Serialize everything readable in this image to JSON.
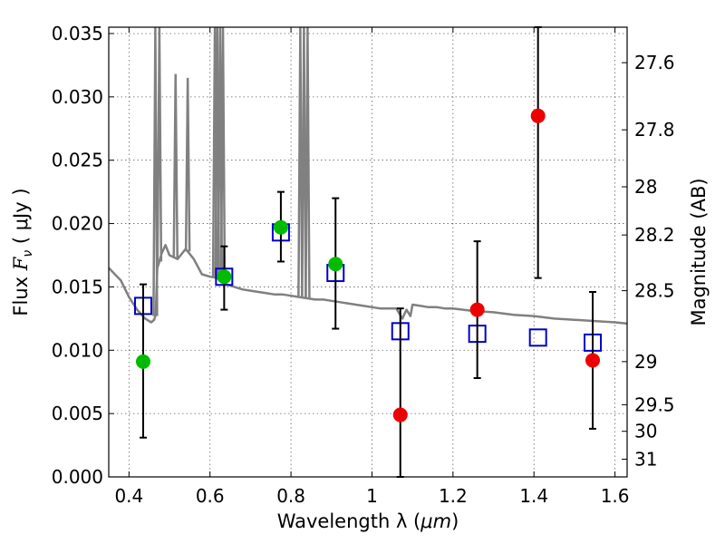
{
  "chart_data": {
    "type": "scatter",
    "title": "",
    "xlabel_prefix": "Wavelength  λ (",
    "xlabel_unit": "μm",
    "xlabel_suffix": ")",
    "ylabel_prefix": "Flux  ",
    "ylabel_symbol": "F",
    "ylabel_sub": "ν",
    "ylabel_suffix": "  ( μJy )",
    "y2label": "Magnitude (AB)",
    "xlim": [
      0.35,
      1.63
    ],
    "ylim": [
      0.0,
      0.0355
    ],
    "x_ticks": [
      {
        "value": 0.4,
        "label": "0.4"
      },
      {
        "value": 0.6,
        "label": "0.6"
      },
      {
        "value": 0.8,
        "label": "0.8"
      },
      {
        "value": 1.0,
        "label": "1"
      },
      {
        "value": 1.2,
        "label": "1.2"
      },
      {
        "value": 1.4,
        "label": "1.4"
      },
      {
        "value": 1.6,
        "label": "1.6"
      }
    ],
    "y_ticks": [
      {
        "value": 0.0,
        "label": "0.000"
      },
      {
        "value": 0.005,
        "label": "0.005"
      },
      {
        "value": 0.01,
        "label": "0.010"
      },
      {
        "value": 0.015,
        "label": "0.015"
      },
      {
        "value": 0.02,
        "label": "0.020"
      },
      {
        "value": 0.025,
        "label": "0.025"
      },
      {
        "value": 0.03,
        "label": "0.030"
      },
      {
        "value": 0.035,
        "label": "0.035"
      }
    ],
    "y2_ticks": [
      {
        "flux": 0.0327,
        "label": "27.6"
      },
      {
        "flux": 0.0274,
        "label": "27.8"
      },
      {
        "flux": 0.0229,
        "label": "28"
      },
      {
        "flux": 0.0191,
        "label": "28.2"
      },
      {
        "flux": 0.0147,
        "label": "28.5"
      },
      {
        "flux": 0.0091,
        "label": "29"
      },
      {
        "flux": 0.0057,
        "label": "29.5"
      },
      {
        "flux": 0.0036,
        "label": "30"
      },
      {
        "flux": 0.0014,
        "label": "31"
      }
    ],
    "grid": true,
    "colors": {
      "model_line": "#808080",
      "model_points": "#0000cc",
      "detections": "#00bb00",
      "nondetections": "#ee0000",
      "errorbars": "#000000"
    },
    "model_spectrum": {
      "x": [
        0.35,
        0.38,
        0.4,
        0.42,
        0.44,
        0.455,
        0.462,
        0.466,
        0.47,
        0.475,
        0.48,
        0.49,
        0.5,
        0.52,
        0.54,
        0.56,
        0.58,
        0.6,
        0.62,
        0.64,
        0.66,
        0.68,
        0.7,
        0.72,
        0.74,
        0.76,
        0.78,
        0.8,
        0.82,
        0.84,
        0.86,
        0.88,
        0.9,
        0.92,
        0.94,
        0.96,
        0.98,
        1.0,
        1.02,
        1.04,
        1.06,
        1.075,
        1.085,
        1.095,
        1.1,
        1.12,
        1.14,
        1.16,
        1.18,
        1.2,
        1.25,
        1.3,
        1.35,
        1.4,
        1.45,
        1.5,
        1.55,
        1.6,
        1.63
      ],
      "y": [
        0.0165,
        0.0155,
        0.0142,
        0.0132,
        0.0125,
        0.0122,
        0.0124,
        0.0128,
        0.0165,
        0.017,
        0.0176,
        0.0183,
        0.0175,
        0.0172,
        0.018,
        0.0172,
        0.016,
        0.0158,
        0.0157,
        0.0152,
        0.015,
        0.0148,
        0.0147,
        0.0146,
        0.0145,
        0.0144,
        0.0144,
        0.0143,
        0.0142,
        0.0141,
        0.014,
        0.014,
        0.0139,
        0.0138,
        0.0137,
        0.0136,
        0.0135,
        0.0134,
        0.0133,
        0.0133,
        0.0133,
        0.0125,
        0.0132,
        0.0127,
        0.0136,
        0.0135,
        0.0134,
        0.0134,
        0.0133,
        0.0133,
        0.0131,
        0.013,
        0.0128,
        0.0127,
        0.0125,
        0.0124,
        0.0123,
        0.0122,
        0.0121
      ]
    },
    "emission_lines": [
      {
        "x": 0.465,
        "peak": 0.0355
      },
      {
        "x": 0.475,
        "peak": 0.0355
      },
      {
        "x": 0.515,
        "peak": 0.0318
      },
      {
        "x": 0.545,
        "peak": 0.0315
      },
      {
        "x": 0.612,
        "peak": 0.0355
      },
      {
        "x": 0.618,
        "peak": 0.0355
      },
      {
        "x": 0.625,
        "peak": 0.0355
      },
      {
        "x": 0.632,
        "peak": 0.0355
      },
      {
        "x": 0.823,
        "peak": 0.0355
      },
      {
        "x": 0.832,
        "peak": 0.0355
      },
      {
        "x": 0.841,
        "peak": 0.0355
      }
    ],
    "model_points": [
      {
        "x": 0.435,
        "y": 0.0135
      },
      {
        "x": 0.635,
        "y": 0.0158
      },
      {
        "x": 0.775,
        "y": 0.0193
      },
      {
        "x": 0.91,
        "y": 0.0161
      },
      {
        "x": 1.07,
        "y": 0.0115
      },
      {
        "x": 1.26,
        "y": 0.0113
      },
      {
        "x": 1.41,
        "y": 0.011
      },
      {
        "x": 1.545,
        "y": 0.0106
      }
    ],
    "observed": [
      {
        "x": 0.435,
        "y": 0.0091,
        "err_lo": 0.0031,
        "err_hi": 0.0152,
        "type": "detection"
      },
      {
        "x": 0.635,
        "y": 0.0158,
        "err_lo": 0.0132,
        "err_hi": 0.0182,
        "type": "detection"
      },
      {
        "x": 0.775,
        "y": 0.0197,
        "err_lo": 0.017,
        "err_hi": 0.0225,
        "type": "detection"
      },
      {
        "x": 0.91,
        "y": 0.0168,
        "err_lo": 0.0117,
        "err_hi": 0.022,
        "type": "detection"
      },
      {
        "x": 1.07,
        "y": 0.0049,
        "err_lo": 0.0,
        "err_hi": 0.0133,
        "type": "nondetection"
      },
      {
        "x": 1.26,
        "y": 0.0132,
        "err_lo": 0.0078,
        "err_hi": 0.0186,
        "type": "nondetection"
      },
      {
        "x": 1.41,
        "y": 0.0285,
        "err_lo": 0.0157,
        "err_hi": 0.0355,
        "type": "nondetection"
      },
      {
        "x": 1.545,
        "y": 0.0092,
        "err_lo": 0.0038,
        "err_hi": 0.0146,
        "type": "nondetection"
      }
    ]
  }
}
